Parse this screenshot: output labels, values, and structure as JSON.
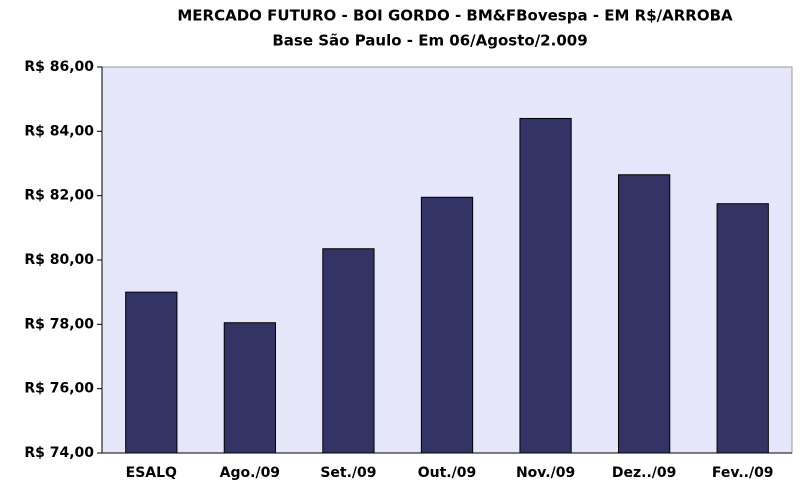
{
  "chart_data": {
    "type": "bar",
    "title": "MERCADO FUTURO - BOI GORDO - BM&FBovespa - EM R$/ARROBA",
    "subtitle": "Base São Paulo - Em 06/Agosto/2.009",
    "categories": [
      "ESALQ",
      "Ago./09",
      "Set./09",
      "Out./09",
      "Nov./09",
      "Dez../09",
      "Fev../09"
    ],
    "values": [
      79.0,
      78.05,
      80.35,
      81.95,
      84.4,
      82.65,
      81.75
    ],
    "color": "#333366",
    "ylim": [
      74,
      86
    ],
    "yticks": [
      {
        "value": 74,
        "label": "R$ 74,00"
      },
      {
        "value": 76,
        "label": "R$ 76,00"
      },
      {
        "value": 78,
        "label": "R$ 78,00"
      },
      {
        "value": 80,
        "label": "R$ 80,00"
      },
      {
        "value": 82,
        "label": "R$ 82,00"
      },
      {
        "value": 84,
        "label": "R$ 84,00"
      },
      {
        "value": 86,
        "label": "R$ 86,00"
      }
    ],
    "grid": false
  }
}
